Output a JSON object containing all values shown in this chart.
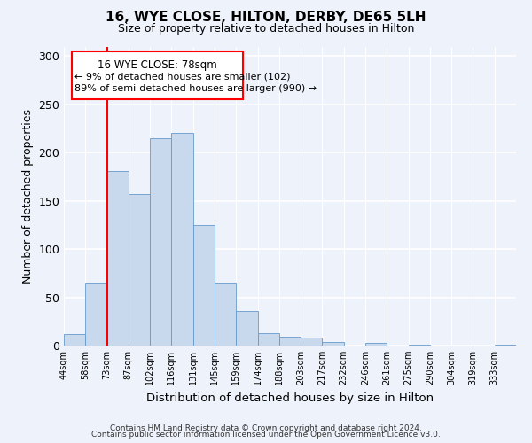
{
  "title": "16, WYE CLOSE, HILTON, DERBY, DE65 5LH",
  "subtitle": "Size of property relative to detached houses in Hilton",
  "xlabel": "Distribution of detached houses by size in Hilton",
  "ylabel": "Number of detached properties",
  "bar_color": "#c8d9ee",
  "bar_edge_color": "#6699cc",
  "bin_labels": [
    "44sqm",
    "58sqm",
    "73sqm",
    "87sqm",
    "102sqm",
    "116sqm",
    "131sqm",
    "145sqm",
    "159sqm",
    "174sqm",
    "188sqm",
    "203sqm",
    "217sqm",
    "232sqm",
    "246sqm",
    "261sqm",
    "275sqm",
    "290sqm",
    "304sqm",
    "319sqm",
    "333sqm"
  ],
  "bar_heights": [
    12,
    65,
    181,
    157,
    215,
    220,
    125,
    65,
    36,
    13,
    9,
    8,
    4,
    0,
    3,
    0,
    1,
    0,
    0,
    0,
    1
  ],
  "red_line_x": 2,
  "annotation_title": "16 WYE CLOSE: 78sqm",
  "annotation_line1": "← 9% of detached houses are smaller (102)",
  "annotation_line2": "89% of semi-detached houses are larger (990) →",
  "ylim": [
    0,
    310
  ],
  "yticks": [
    0,
    50,
    100,
    150,
    200,
    250,
    300
  ],
  "footer1": "Contains HM Land Registry data © Crown copyright and database right 2024.",
  "footer2": "Contains public sector information licensed under the Open Government Licence v3.0.",
  "background_color": "#eef2fa"
}
